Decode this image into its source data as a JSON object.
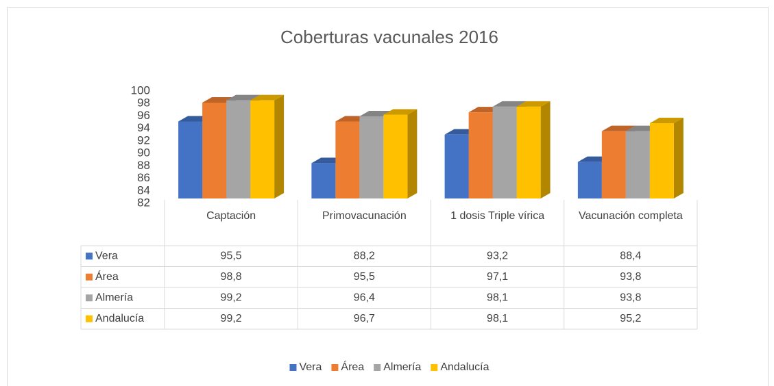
{
  "chart_data": {
    "type": "bar3d",
    "title": "Coberturas vacunales 2016",
    "categories": [
      "Captación",
      "Primovacunación",
      "1 dosis Triple vírica",
      "Vacunación completa"
    ],
    "series": [
      {
        "name": "Vera",
        "color": "#4472c4",
        "values": [
          95.5,
          88.2,
          93.2,
          88.4
        ],
        "value_labels": [
          "95,5",
          "88,2",
          "93,2",
          "88,4"
        ]
      },
      {
        "name": "Área",
        "color": "#ed7d31",
        "values": [
          98.8,
          95.5,
          97.1,
          93.8
        ],
        "value_labels": [
          "98,8",
          "95,5",
          "97,1",
          "93,8"
        ]
      },
      {
        "name": "Almería",
        "color": "#a5a5a5",
        "values": [
          99.2,
          96.4,
          98.1,
          93.8
        ],
        "value_labels": [
          "99,2",
          "96,4",
          "98,1",
          "93,8"
        ]
      },
      {
        "name": "Andalucía",
        "color": "#ffc000",
        "values": [
          99.2,
          96.7,
          98.1,
          95.2
        ],
        "value_labels": [
          "99,2",
          "96,7",
          "98,1",
          "95,2"
        ]
      }
    ],
    "ylim": [
      82,
      100
    ],
    "yticks": [
      82,
      84,
      86,
      88,
      90,
      92,
      94,
      96,
      98,
      100
    ],
    "legend": "bottom",
    "data_table": true
  }
}
